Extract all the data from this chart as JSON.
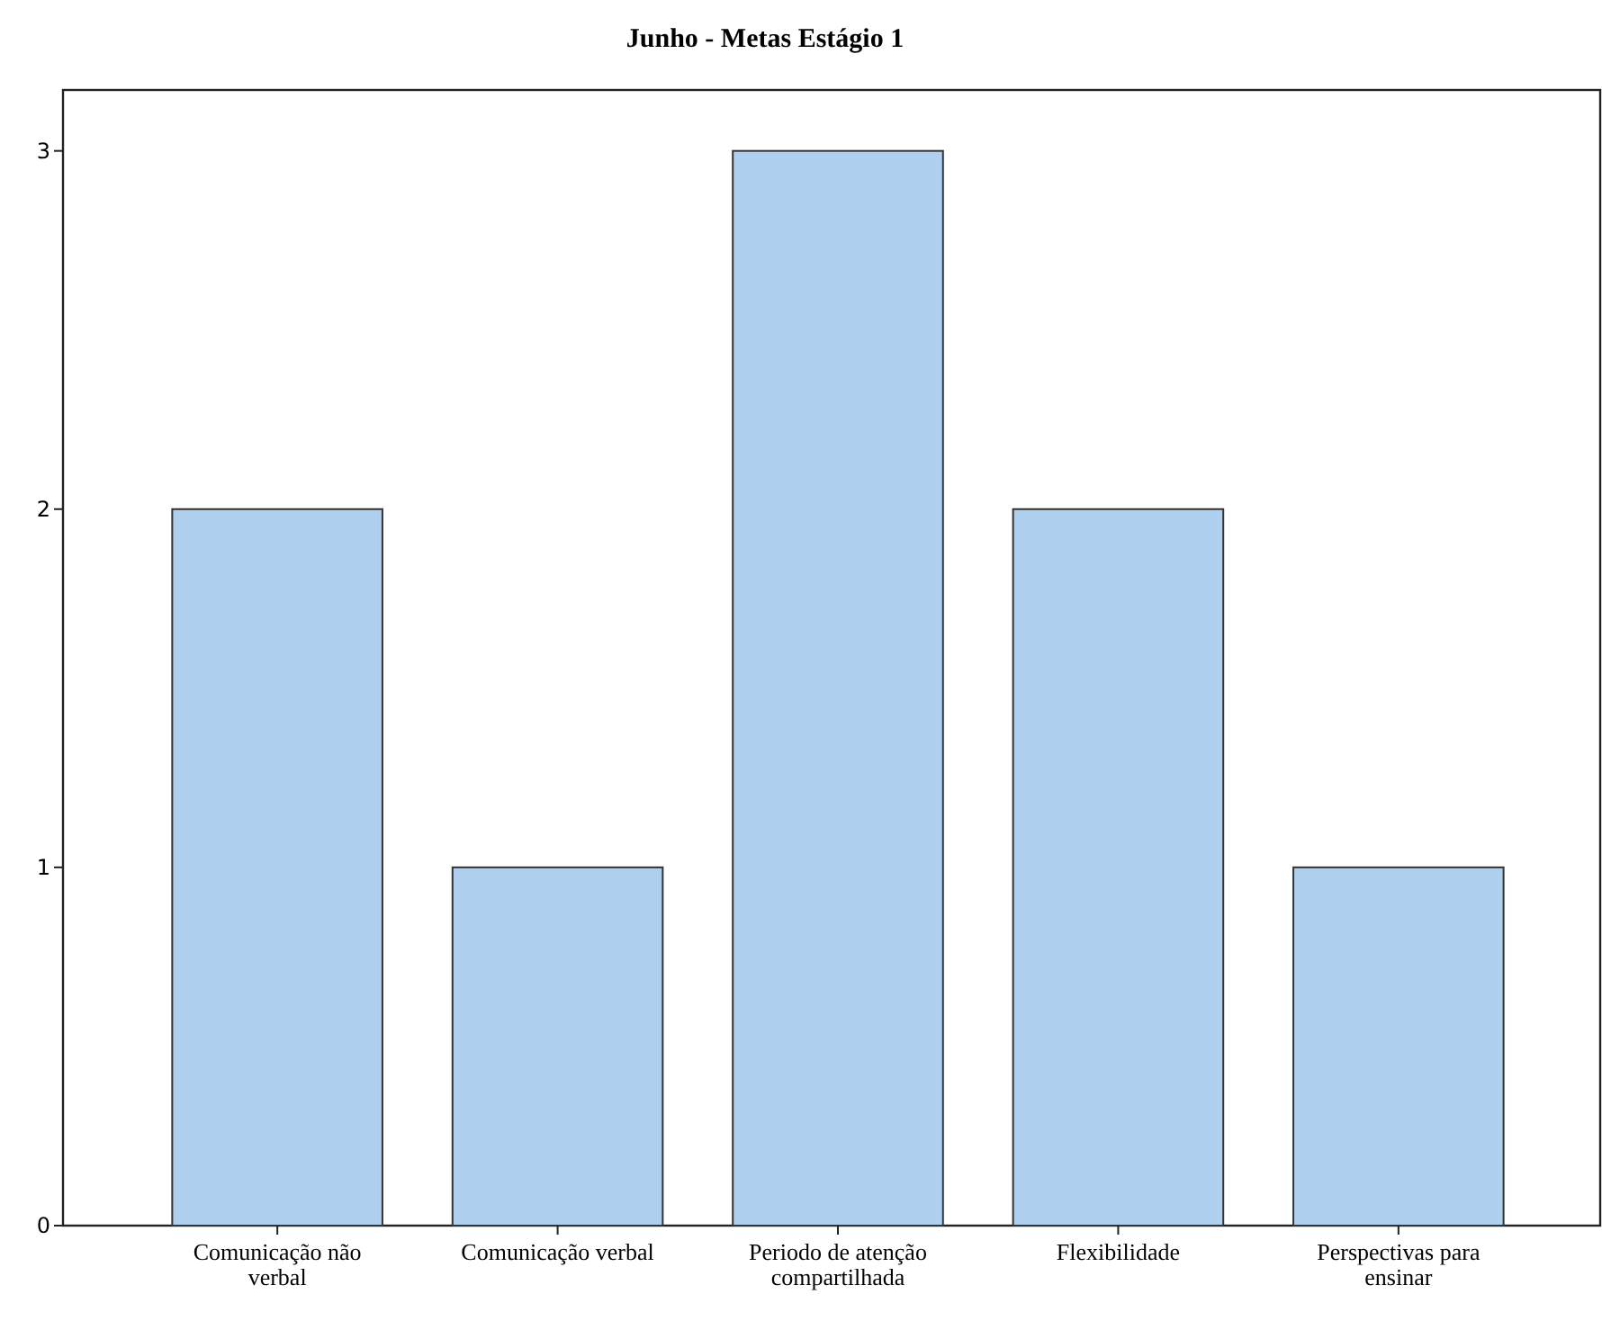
{
  "chart_data": {
    "type": "bar",
    "title": "Junho - Metas Estágio 1",
    "categories": [
      "Comunicação não verbal",
      "Comunicação verbal",
      "Periodo de atenção compartilhada",
      "Flexibilidade",
      "Perspectivas para ensinar"
    ],
    "values": [
      2,
      1,
      3,
      2,
      1
    ],
    "color": "#aed0ee",
    "ylim": [
      0,
      3.17
    ],
    "yticks": [
      0,
      1,
      2,
      3
    ],
    "grid": false
  }
}
